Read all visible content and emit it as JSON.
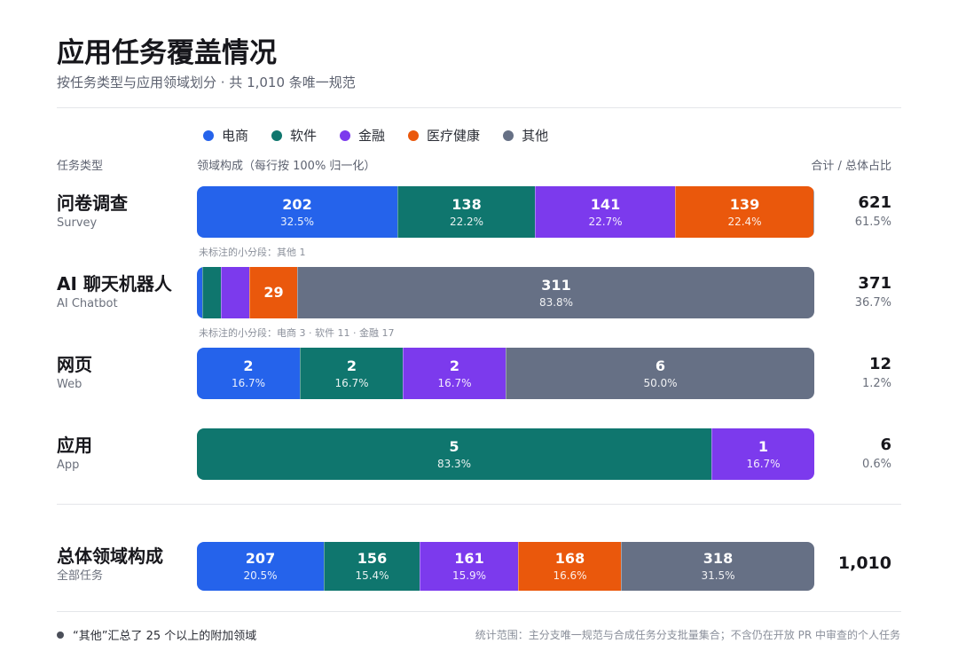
{
  "header": {
    "title": "应用任务覆盖情况",
    "subtitle": "按任务类型与应用领域划分 · 共 1,010 条唯一规范"
  },
  "columns": {
    "task_type": "任务类型",
    "composition": "领域构成（每行按 100% 归一化）",
    "total": "合计 / 总体占比"
  },
  "legend": [
    {
      "name": "电商",
      "color": "#2563eb"
    },
    {
      "name": "软件",
      "color": "#0f766e"
    },
    {
      "name": "金融",
      "color": "#7c3aed"
    },
    {
      "name": "医疗健康",
      "color": "#ea580c"
    },
    {
      "name": "其他",
      "color": "#667085"
    }
  ],
  "chart_data": {
    "type": "bar",
    "orientation": "horizontal-stacked-100%",
    "series_names": [
      "电商",
      "软件",
      "金融",
      "医疗健康",
      "其他"
    ],
    "rows": [
      {
        "label": "问卷调查",
        "sublabel": "Survey",
        "values": [
          202,
          138,
          141,
          139,
          1
        ],
        "percents": [
          "32.5%",
          "22.2%",
          "22.7%",
          "22.4%",
          ""
        ],
        "labeled": [
          true,
          true,
          true,
          true,
          false
        ],
        "total": "621",
        "share": "61.5%",
        "note": "未标注的小分段：其他 1"
      },
      {
        "label": "AI 聊天机器人",
        "sublabel": "AI Chatbot",
        "values": [
          3,
          11,
          17,
          29,
          311
        ],
        "percents": [
          "",
          "",
          "",
          "",
          "83.8%"
        ],
        "labeled": [
          false,
          false,
          false,
          true,
          true
        ],
        "total": "371",
        "share": "36.7%",
        "note": "未标注的小分段：电商 3 · 软件 11 · 金融 17"
      },
      {
        "label": "网页",
        "sublabel": "Web",
        "values": [
          2,
          2,
          2,
          0,
          6
        ],
        "percents": [
          "16.7%",
          "16.7%",
          "16.7%",
          "",
          "50.0%"
        ],
        "labeled": [
          true,
          true,
          true,
          false,
          true
        ],
        "total": "12",
        "share": "1.2%"
      },
      {
        "label": "应用",
        "sublabel": "App",
        "values": [
          0,
          5,
          1,
          0,
          0
        ],
        "percents": [
          "",
          "83.3%",
          "16.7%",
          "",
          ""
        ],
        "labeled": [
          false,
          true,
          true,
          false,
          false
        ],
        "total": "6",
        "share": "0.6%"
      }
    ],
    "overall": {
      "label": "总体领域构成",
      "sublabel": "全部任务",
      "values": [
        207,
        156,
        161,
        168,
        318
      ],
      "percents": [
        "20.5%",
        "15.4%",
        "15.9%",
        "16.6%",
        "31.5%"
      ],
      "labeled": [
        true,
        true,
        true,
        true,
        true
      ],
      "total": "1,010"
    }
  },
  "footer": {
    "left": "“其他”汇总了 25 个以上的附加领域",
    "right": "统计范围：主分支唯一规范与合成任务分支批量集合；不含仍在开放 PR 中审查的个人任务"
  }
}
